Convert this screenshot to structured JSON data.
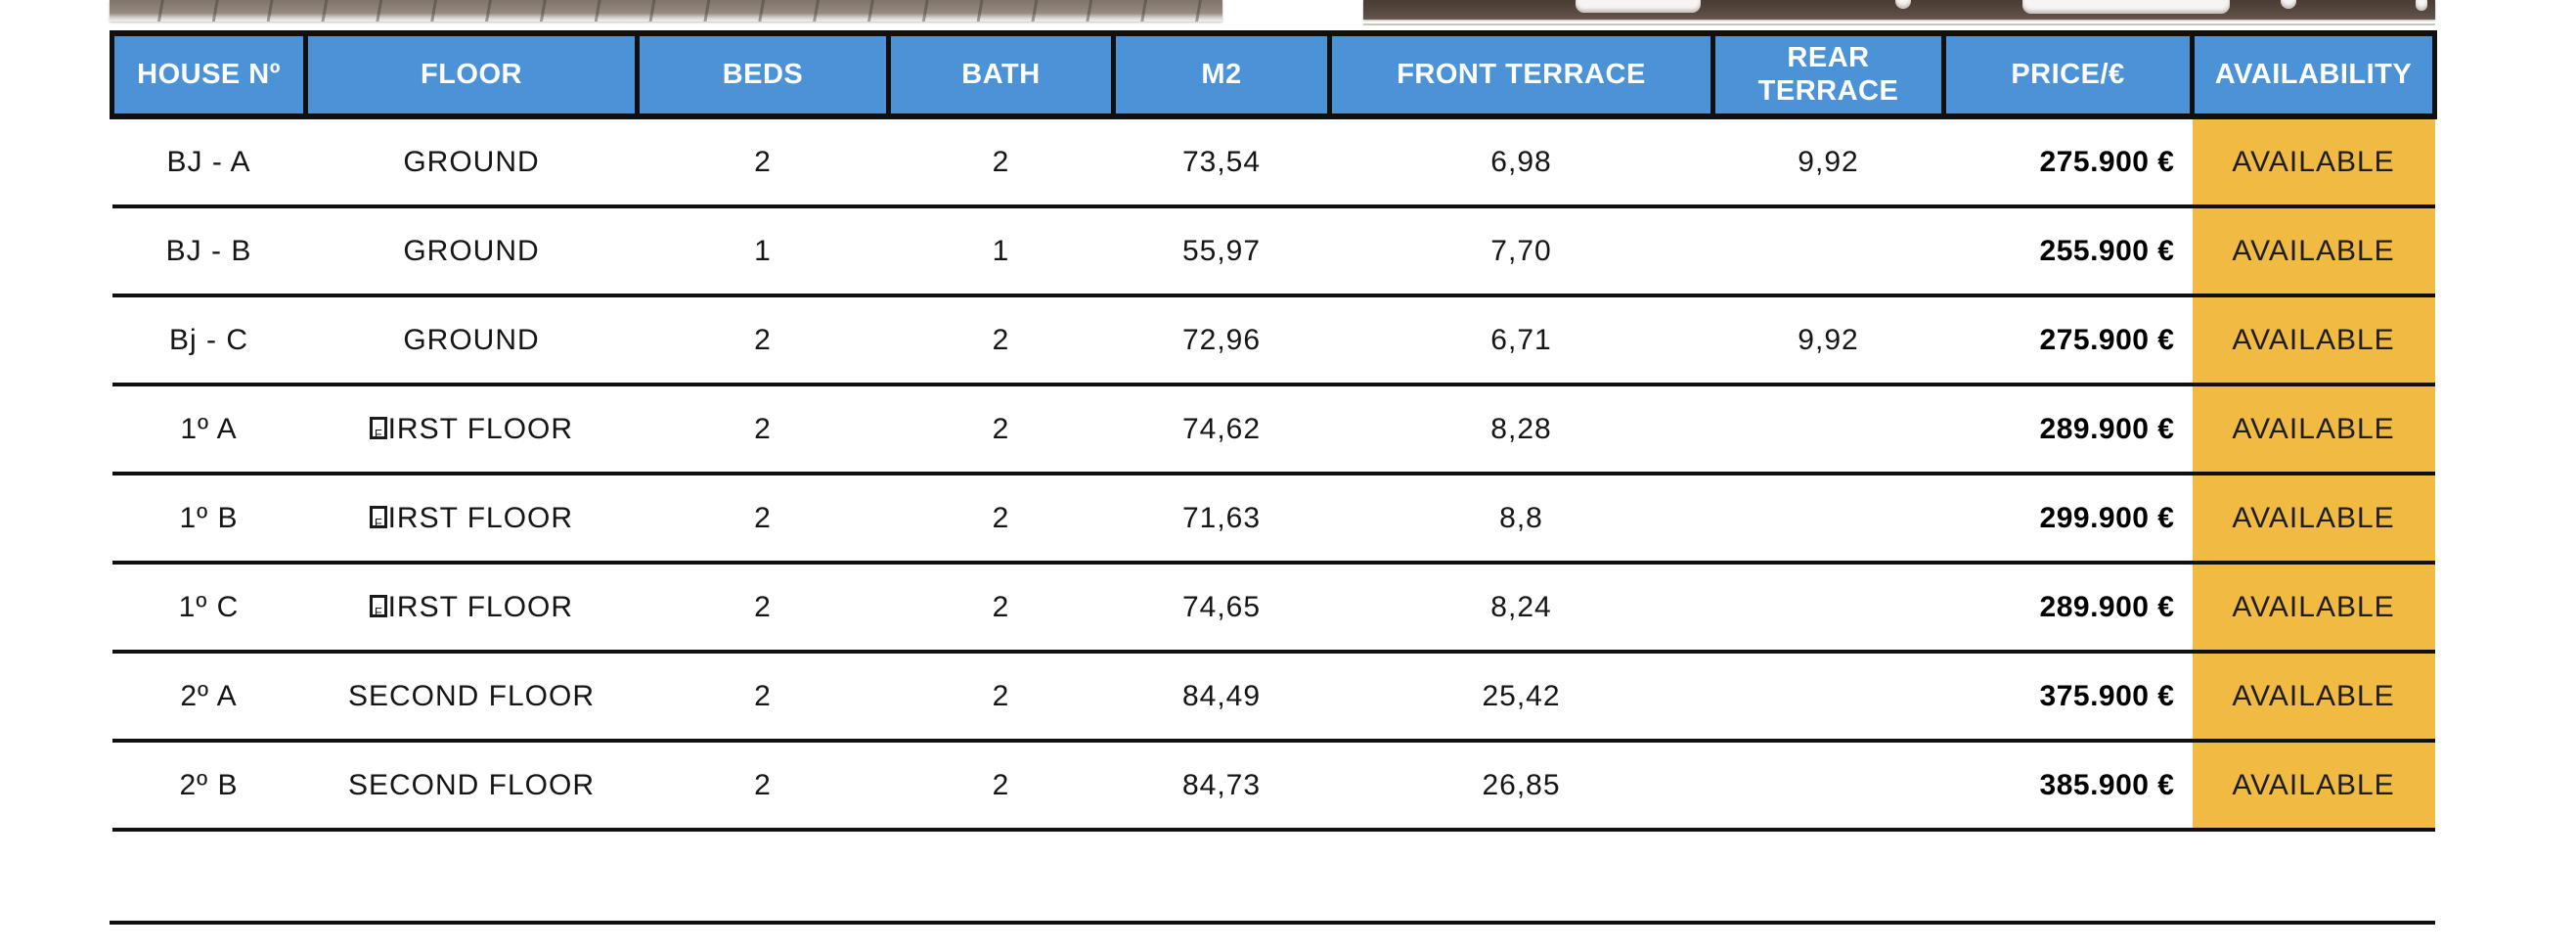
{
  "photos": {
    "left_fragment": {
      "label": "paving-photo-bottom-edge",
      "base_color": "#8d8278",
      "groove_color": "#463c34"
    },
    "right_fragment": {
      "label": "interior-photo-bottom-edge",
      "base_color": "#564740",
      "object_color": "#f6f5f3"
    }
  },
  "table": {
    "colors": {
      "header_bg": "#4b93d6",
      "header_fg": "#ffffff",
      "line": "#101010",
      "availability_bg": "#f1ba43"
    },
    "columns": [
      "HOUSE Nº",
      "FLOOR",
      "BEDS",
      "BATH",
      "M2",
      "FRONT TERRACE",
      "REAR TERRACE",
      "PRICE/€",
      "AVAILABILITY"
    ],
    "rows": [
      {
        "house": "BJ - A",
        "floor": "GROUND",
        "floor_glyph_damaged": false,
        "beds": "2",
        "bath": "2",
        "m2": "73,54",
        "front_terrace": "6,98",
        "rear_terrace": "9,92",
        "price": "275.900 €",
        "availability": "AVAILABLE"
      },
      {
        "house": "BJ - B",
        "floor": "GROUND",
        "floor_glyph_damaged": false,
        "beds": "1",
        "bath": "1",
        "m2": "55,97",
        "front_terrace": "7,70",
        "rear_terrace": "",
        "price": "255.900 €",
        "availability": "AVAILABLE"
      },
      {
        "house": "Bj - C",
        "floor": "GROUND",
        "floor_glyph_damaged": false,
        "beds": "2",
        "bath": "2",
        "m2": "72,96",
        "front_terrace": "6,71",
        "rear_terrace": "9,92",
        "price": "275.900 €",
        "availability": "AVAILABLE"
      },
      {
        "house": "1º A",
        "floor": "FIRST FLOOR",
        "floor_glyph_damaged": true,
        "beds": "2",
        "bath": "2",
        "m2": "74,62",
        "front_terrace": "8,28",
        "rear_terrace": "",
        "price": "289.900 €",
        "availability": "AVAILABLE"
      },
      {
        "house": "1º B",
        "floor": "FIRST FLOOR",
        "floor_glyph_damaged": true,
        "beds": "2",
        "bath": "2",
        "m2": "71,63",
        "front_terrace": "8,8",
        "rear_terrace": "",
        "price": "299.900 €",
        "availability": "AVAILABLE"
      },
      {
        "house": "1º C",
        "floor": "FIRST FLOOR",
        "floor_glyph_damaged": true,
        "beds": "2",
        "bath": "2",
        "m2": "74,65",
        "front_terrace": "8,24",
        "rear_terrace": "",
        "price": "289.900 €",
        "availability": "AVAILABLE"
      },
      {
        "house": "2º A",
        "floor": "SECOND FLOOR",
        "floor_glyph_damaged": false,
        "beds": "2",
        "bath": "2",
        "m2": "84,49",
        "front_terrace": "25,42",
        "rear_terrace": "",
        "price": "375.900 €",
        "availability": "AVAILABLE"
      },
      {
        "house": "2º B",
        "floor": "SECOND FLOOR",
        "floor_glyph_damaged": false,
        "beds": "2",
        "bath": "2",
        "m2": "84,73",
        "front_terrace": "26,85",
        "rear_terrace": "",
        "price": "385.900 €",
        "availability": "AVAILABLE"
      }
    ]
  }
}
